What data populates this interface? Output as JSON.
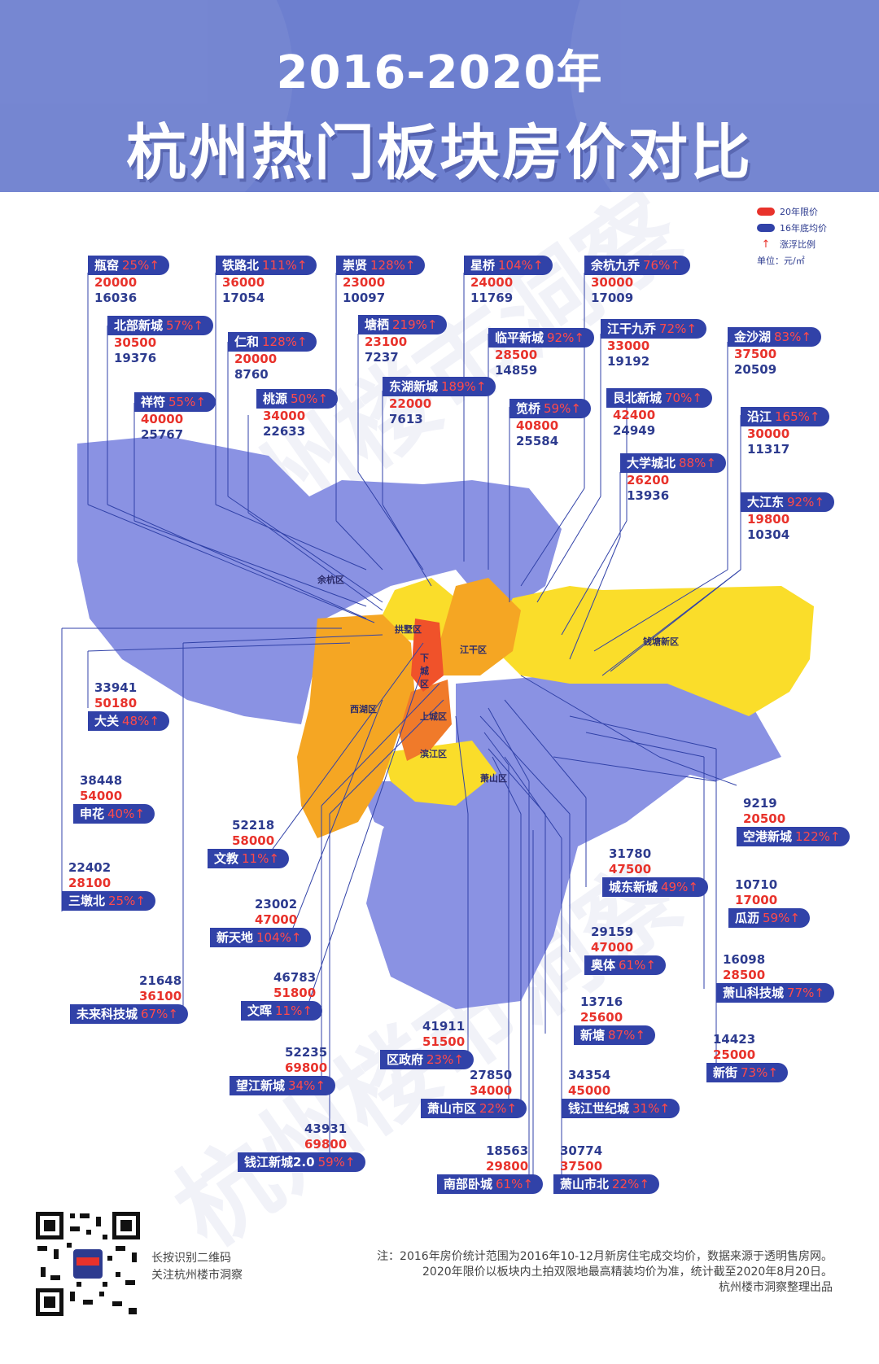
{
  "header": {
    "year_range": "2016-2020年",
    "title": "杭州热门板块房价对比"
  },
  "legend": {
    "items": [
      {
        "label": "20年限价",
        "color": "#e8322b"
      },
      {
        "label": "16年底均价",
        "color": "#3142a8"
      },
      {
        "label": "涨浮比例",
        "symbol": "↑"
      }
    ],
    "unit": "单位：元/㎡"
  },
  "colors": {
    "header_bg": "#6d7fcf",
    "tag_bg": "#3142a8",
    "price_2020": "#e8322b",
    "price_2016": "#2d3b8f",
    "region_outer": "#8a92e3",
    "region_mid": "#f5a623",
    "region_core": "#f07a2a",
    "region_center": "#f0522a",
    "region_yellow": "#fadd2a"
  },
  "districts": [
    {
      "name": "余杭区"
    },
    {
      "name": "拱墅区"
    },
    {
      "name": "下城区"
    },
    {
      "name": "江干区"
    },
    {
      "name": "西湖区"
    },
    {
      "name": "上城区"
    },
    {
      "name": "滨江区"
    },
    {
      "name": "萧山区"
    },
    {
      "name": "钱塘新区"
    }
  ],
  "blocks": [
    {
      "id": "pingyao",
      "name": "瓶窑",
      "pct": "25%↑",
      "p2020": "20000",
      "p2016": "16036"
    },
    {
      "id": "tielubei",
      "name": "铁路北",
      "pct": "111%↑",
      "p2020": "36000",
      "p2016": "17054"
    },
    {
      "id": "chongxian",
      "name": "崇贤",
      "pct": "128%↑",
      "p2020": "23000",
      "p2016": "10097"
    },
    {
      "id": "xingqiao",
      "name": "星桥",
      "pct": "104%↑",
      "p2020": "24000",
      "p2016": "11769"
    },
    {
      "id": "yuhangjq",
      "name": "余杭九乔",
      "pct": "76%↑",
      "p2020": "30000",
      "p2016": "17009"
    },
    {
      "id": "beibu",
      "name": "北部新城",
      "pct": "57%↑",
      "p2020": "30500",
      "p2016": "19376"
    },
    {
      "id": "renhe",
      "name": "仁和",
      "pct": "128%↑",
      "p2020": "20000",
      "p2016": "8760"
    },
    {
      "id": "tangqi",
      "name": "塘栖",
      "pct": "219%↑",
      "p2020": "23100",
      "p2016": "7237"
    },
    {
      "id": "linping",
      "name": "临平新城",
      "pct": "92%↑",
      "p2020": "28500",
      "p2016": "14859"
    },
    {
      "id": "jiangganjq",
      "name": "江干九乔",
      "pct": "72%↑",
      "p2020": "33000",
      "p2016": "19192"
    },
    {
      "id": "jinshahu",
      "name": "金沙湖",
      "pct": "83%↑",
      "p2020": "37500",
      "p2016": "20509"
    },
    {
      "id": "xiangfu",
      "name": "祥符",
      "pct": "55%↑",
      "p2020": "40000",
      "p2016": "25767"
    },
    {
      "id": "taoyuan",
      "name": "桃源",
      "pct": "50%↑",
      "p2020": "34000",
      "p2016": "22633"
    },
    {
      "id": "donghu",
      "name": "东湖新城",
      "pct": "189%↑",
      "p2020": "22000",
      "p2016": "7613"
    },
    {
      "id": "jianqiao",
      "name": "笕桥",
      "pct": "59%↑",
      "p2020": "40800",
      "p2016": "25584"
    },
    {
      "id": "genbei",
      "name": "艮北新城",
      "pct": "70%↑",
      "p2020": "42400",
      "p2016": "24949"
    },
    {
      "id": "yanjiang",
      "name": "沿江",
      "pct": "165%↑",
      "p2020": "30000",
      "p2016": "11317"
    },
    {
      "id": "daxuecheng",
      "name": "大学城北",
      "pct": "88%↑",
      "p2020": "26200",
      "p2016": "13936"
    },
    {
      "id": "dajiangdong",
      "name": "大江东",
      "pct": "92%↑",
      "p2020": "19800",
      "p2016": "10304"
    },
    {
      "id": "daguan",
      "name": "大关",
      "pct": "48%↑",
      "p2020": "50180",
      "p2016": "33941"
    },
    {
      "id": "shenhua",
      "name": "申花",
      "pct": "40%↑",
      "p2020": "54000",
      "p2016": "38448"
    },
    {
      "id": "wenjiao",
      "name": "文教",
      "pct": "11%↑",
      "p2020": "58000",
      "p2016": "52218"
    },
    {
      "id": "sandunbei",
      "name": "三墩北",
      "pct": "25%↑",
      "p2020": "28100",
      "p2016": "22402"
    },
    {
      "id": "xintiandi",
      "name": "新天地",
      "pct": "104%↑",
      "p2020": "47000",
      "p2016": "23002"
    },
    {
      "id": "weilai",
      "name": "未来科技城",
      "pct": "67%↑",
      "p2020": "36100",
      "p2016": "21648"
    },
    {
      "id": "wenhui",
      "name": "文晖",
      "pct": "11%↑",
      "p2020": "51800",
      "p2016": "46783"
    },
    {
      "id": "wangjiang",
      "name": "望江新城",
      "pct": "34%↑",
      "p2020": "69800",
      "p2016": "52235"
    },
    {
      "id": "qianjiang2",
      "name": "钱江新城2.0",
      "pct": "59%↑",
      "p2020": "69800",
      "p2016": "43931"
    },
    {
      "id": "kongang",
      "name": "空港新城",
      "pct": "122%↑",
      "p2020": "20500",
      "p2016": "9219"
    },
    {
      "id": "chengdong",
      "name": "城东新城",
      "pct": "49%↑",
      "p2020": "47500",
      "p2016": "31780"
    },
    {
      "id": "guali",
      "name": "瓜沥",
      "pct": "59%↑",
      "p2020": "17000",
      "p2016": "10710"
    },
    {
      "id": "aoti",
      "name": "奥体",
      "pct": "61%↑",
      "p2020": "47000",
      "p2016": "29159"
    },
    {
      "id": "xiaoshankj",
      "name": "萧山科技城",
      "pct": "77%↑",
      "p2020": "28500",
      "p2016": "16098"
    },
    {
      "id": "xintang",
      "name": "新塘",
      "pct": "87%↑",
      "p2020": "25600",
      "p2016": "13716"
    },
    {
      "id": "xinjie",
      "name": "新街",
      "pct": "73%↑",
      "p2020": "25000",
      "p2016": "14423"
    },
    {
      "id": "quzhengfu",
      "name": "区政府",
      "pct": "23%↑",
      "p2020": "51500",
      "p2016": "41911"
    },
    {
      "id": "xiaoshanshiqu",
      "name": "萧山市区",
      "pct": "22%↑",
      "p2020": "34000",
      "p2016": "27850"
    },
    {
      "id": "qianjiangsj",
      "name": "钱江世纪城",
      "pct": "31%↑",
      "p2020": "45000",
      "p2016": "34354"
    },
    {
      "id": "nanbuwo",
      "name": "南部卧城",
      "pct": "61%↑",
      "p2020": "29800",
      "p2016": "18563"
    },
    {
      "id": "xiaoshanbei",
      "name": "萧山市北",
      "pct": "22%↑",
      "p2020": "37500",
      "p2016": "30774"
    }
  ],
  "qr": {
    "line1": "长按识别二维码",
    "line2": "关注杭州楼市洞察"
  },
  "notes": {
    "line1": "注：2016年房价统计范围为2016年10-12月新房住宅成交均价，数据来源于透明售房网。",
    "line2": "2020年限价以板块内土拍双限地最高精装均价为准，统计截至2020年8月20日。",
    "line3": "杭州楼市洞察整理出品"
  },
  "watermark": "杭州楼市洞察"
}
